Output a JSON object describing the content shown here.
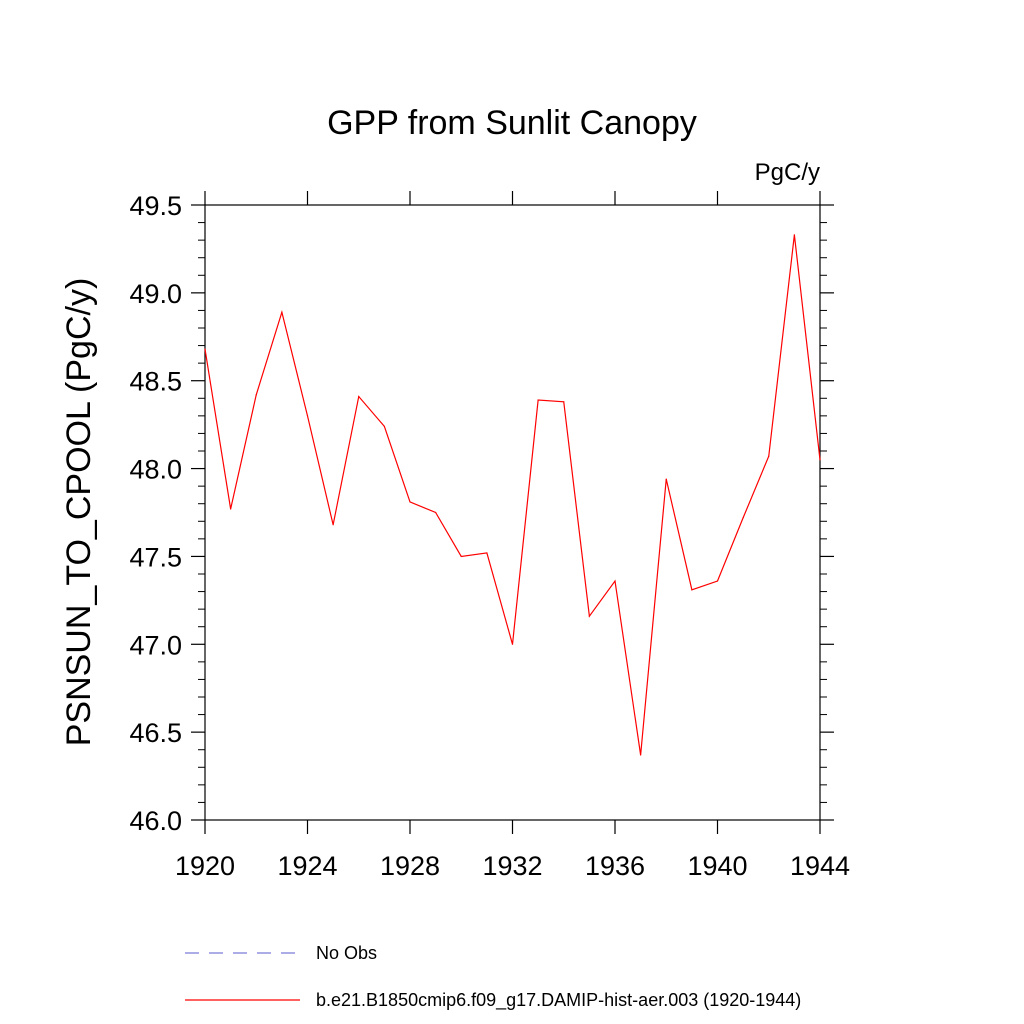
{
  "chart_data": {
    "type": "line",
    "title": "GPP from Sunlit Canopy",
    "units_label": "PgC/y",
    "ylabel": "PSNSUN_TO_CPOOL  (PgC/y)",
    "xlabel": "",
    "xlim": [
      1920,
      1944
    ],
    "ylim": [
      46.0,
      49.5
    ],
    "x_ticks": [
      1920,
      1924,
      1928,
      1932,
      1936,
      1940,
      1944
    ],
    "x_tick_labels": [
      "1920",
      "1924",
      "1928",
      "1932",
      "1936",
      "1940",
      "1944"
    ],
    "y_ticks": [
      46.0,
      46.5,
      47.0,
      47.5,
      48.0,
      48.5,
      49.0,
      49.5
    ],
    "y_tick_labels": [
      "46.0",
      "46.5",
      "47.0",
      "47.5",
      "48.0",
      "48.5",
      "49.0",
      "49.5"
    ],
    "grid": false,
    "legend_position": "bottom",
    "series": [
      {
        "name": "b.e21.B1850cmip6.f09_g17.DAMIP-hist-aer.003 (1920-1944)",
        "color": "#ff0000",
        "style": "solid",
        "x": [
          1920,
          1921,
          1922,
          1923,
          1924,
          1925,
          1926,
          1927,
          1928,
          1929,
          1930,
          1931,
          1932,
          1933,
          1934,
          1935,
          1936,
          1937,
          1938,
          1939,
          1940,
          1941,
          1942,
          1943,
          1944
        ],
        "y": [
          48.68,
          47.77,
          48.42,
          48.89,
          48.3,
          47.68,
          48.41,
          48.24,
          47.81,
          47.75,
          47.5,
          47.52,
          47.0,
          48.39,
          48.38,
          47.16,
          47.36,
          46.37,
          47.94,
          47.31,
          47.36,
          47.72,
          48.07,
          49.33,
          48.05
        ]
      },
      {
        "name": "No Obs",
        "color": "#7a7ad8",
        "style": "dashed",
        "x": [],
        "y": []
      }
    ]
  }
}
